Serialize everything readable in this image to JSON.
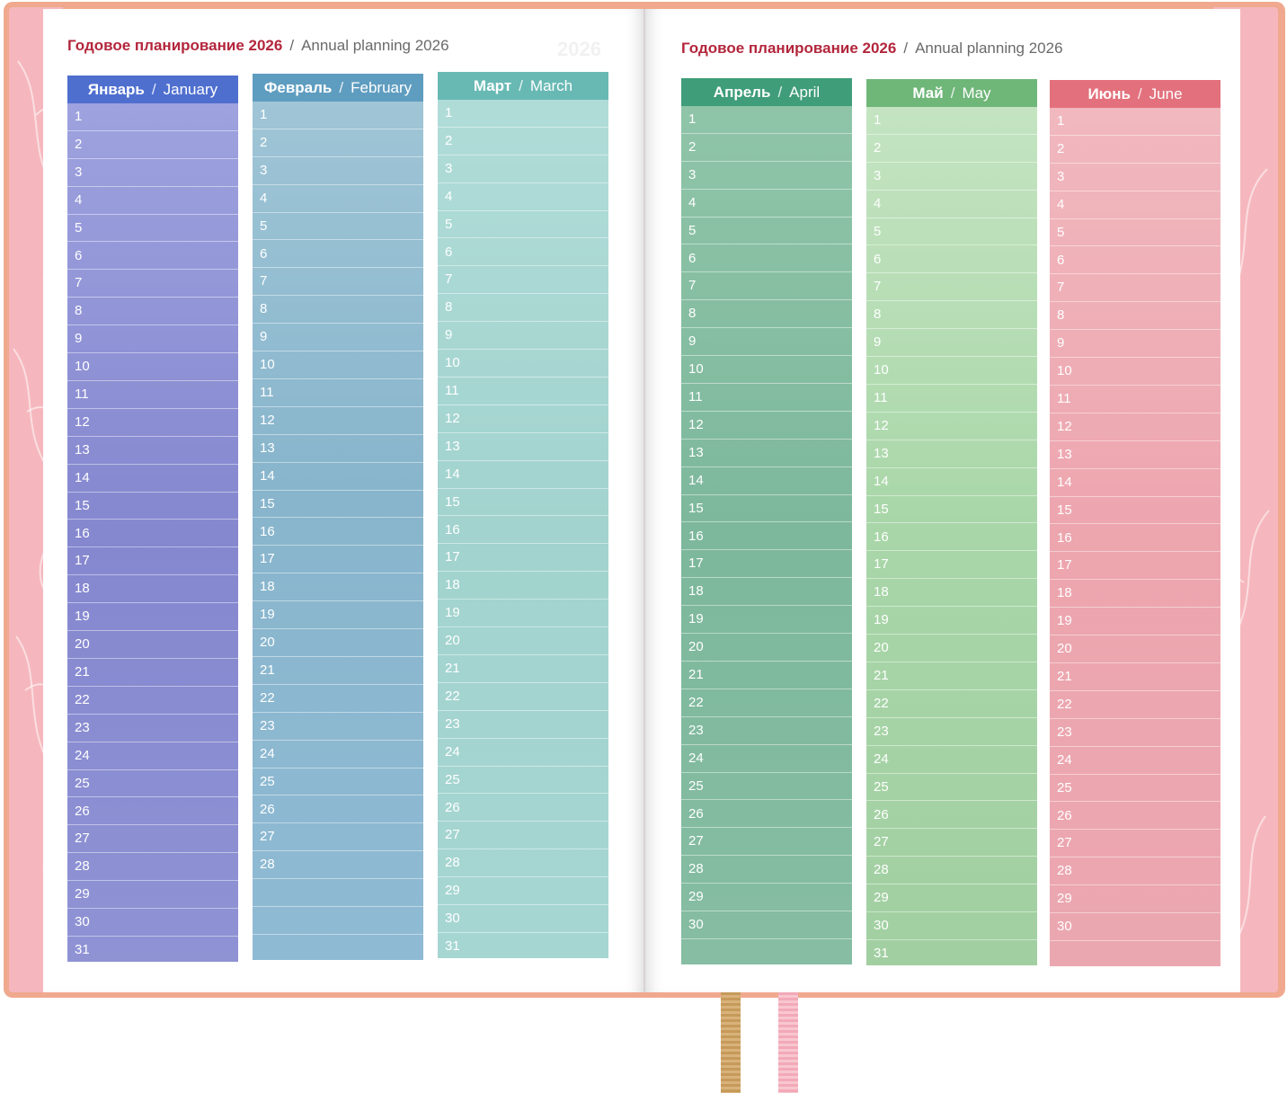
{
  "colors": {
    "cover": "#f0a98e",
    "endpaper": "#f5b7bd",
    "title_accent": "#b3263c"
  },
  "left_page": {
    "title_ru": "Годовое планирование 2026",
    "separator": "/",
    "title_en": "Annual planning 2026",
    "ghost_year": "2026",
    "months": [
      {
        "ru": "Январь",
        "en": "January",
        "days": 31
      },
      {
        "ru": "Февраль",
        "en": "February",
        "days": 28
      },
      {
        "ru": "Март",
        "en": "March",
        "days": 31
      }
    ]
  },
  "right_page": {
    "title_ru": "Годовое планирование 2026",
    "separator": "/",
    "title_en": "Annual planning 2026",
    "months": [
      {
        "ru": "Апрель",
        "en": "April",
        "days": 30
      },
      {
        "ru": "Май",
        "en": "May",
        "days": 31
      },
      {
        "ru": "Июнь",
        "en": "June",
        "days": 30
      }
    ]
  },
  "month_separator": "/",
  "ribbons": [
    "gold-ribbon",
    "pink-ribbon"
  ]
}
